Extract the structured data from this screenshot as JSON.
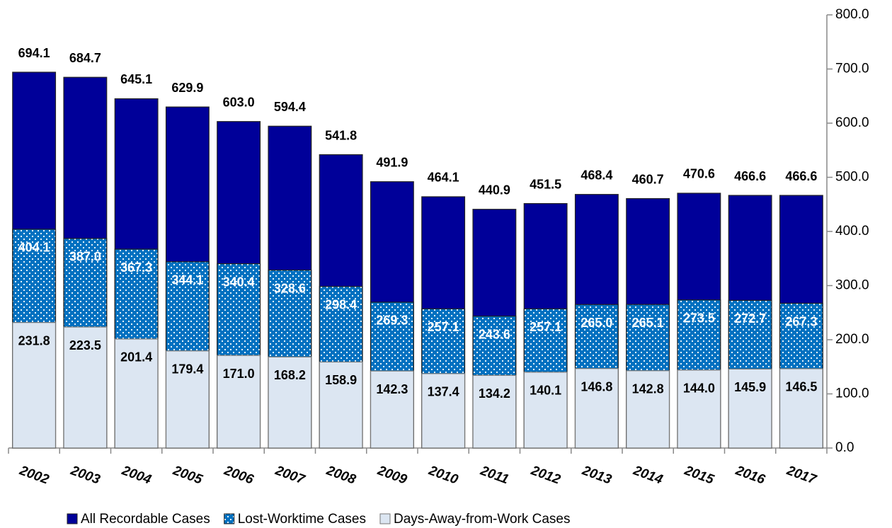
{
  "chart_data": {
    "type": "bar",
    "overlap": true,
    "categories": [
      "2002",
      "2003",
      "2004",
      "2005",
      "2006",
      "2007",
      "2008",
      "2009",
      "2010",
      "2011",
      "2012",
      "2013",
      "2014",
      "2015",
      "2016",
      "2017"
    ],
    "series": [
      {
        "name": "All Recordable Cases",
        "color": "#000099",
        "values": [
          694.1,
          684.7,
          645.1,
          629.9,
          603.0,
          594.4,
          541.8,
          491.9,
          464.1,
          440.9,
          451.5,
          468.4,
          460.7,
          470.6,
          466.6,
          466.6
        ],
        "value_labels": [
          "694.1",
          "684.7",
          "645.1",
          "629.9",
          "603.0",
          "594.4",
          "541.8",
          "491.9",
          "464.1",
          "440.9",
          "451.5",
          "468.4",
          "460.7",
          "470.6",
          "466.6",
          "466.6"
        ]
      },
      {
        "name": "Lost-Worktime Cases",
        "color": "#0070c0",
        "pattern": "dots",
        "values": [
          404.1,
          387.0,
          367.3,
          344.1,
          340.4,
          328.6,
          298.4,
          269.3,
          257.1,
          243.6,
          257.1,
          265.0,
          265.1,
          273.5,
          272.7,
          267.3
        ],
        "value_labels": [
          "404.1",
          "387.0",
          "367.3",
          "344.1",
          "340.4",
          "328.6",
          "298.4",
          "269.3",
          "257.1",
          "243.6",
          "257.1",
          "265.0",
          "265.1",
          "273.5",
          "272.7",
          "267.3"
        ]
      },
      {
        "name": "Days-Away-from-Work Cases",
        "color": "#dce6f2",
        "values": [
          231.8,
          223.5,
          201.4,
          179.4,
          171.0,
          168.2,
          158.9,
          142.3,
          137.4,
          134.2,
          140.1,
          146.8,
          142.8,
          144.0,
          145.9,
          146.5
        ],
        "value_labels": [
          "231.8",
          "223.5",
          "201.4",
          "179.4",
          "171.0",
          "168.2",
          "158.9",
          "142.3",
          "137.4",
          "134.2",
          "140.1",
          "146.8",
          "142.8",
          "144.0",
          "145.9",
          "146.5"
        ]
      }
    ],
    "ylim": [
      0,
      800
    ],
    "yticks": [
      {
        "value": 0,
        "label": "0.0"
      },
      {
        "value": 100,
        "label": "100.0"
      },
      {
        "value": 200,
        "label": "200.0"
      },
      {
        "value": 300,
        "label": "300.0"
      },
      {
        "value": 400,
        "label": "400.0"
      },
      {
        "value": 500,
        "label": "500.0"
      },
      {
        "value": 600,
        "label": "600.0"
      },
      {
        "value": 700,
        "label": "700.0"
      },
      {
        "value": 800,
        "label": "800.0"
      }
    ],
    "yaxis_side": "right",
    "legend": "bottom"
  }
}
